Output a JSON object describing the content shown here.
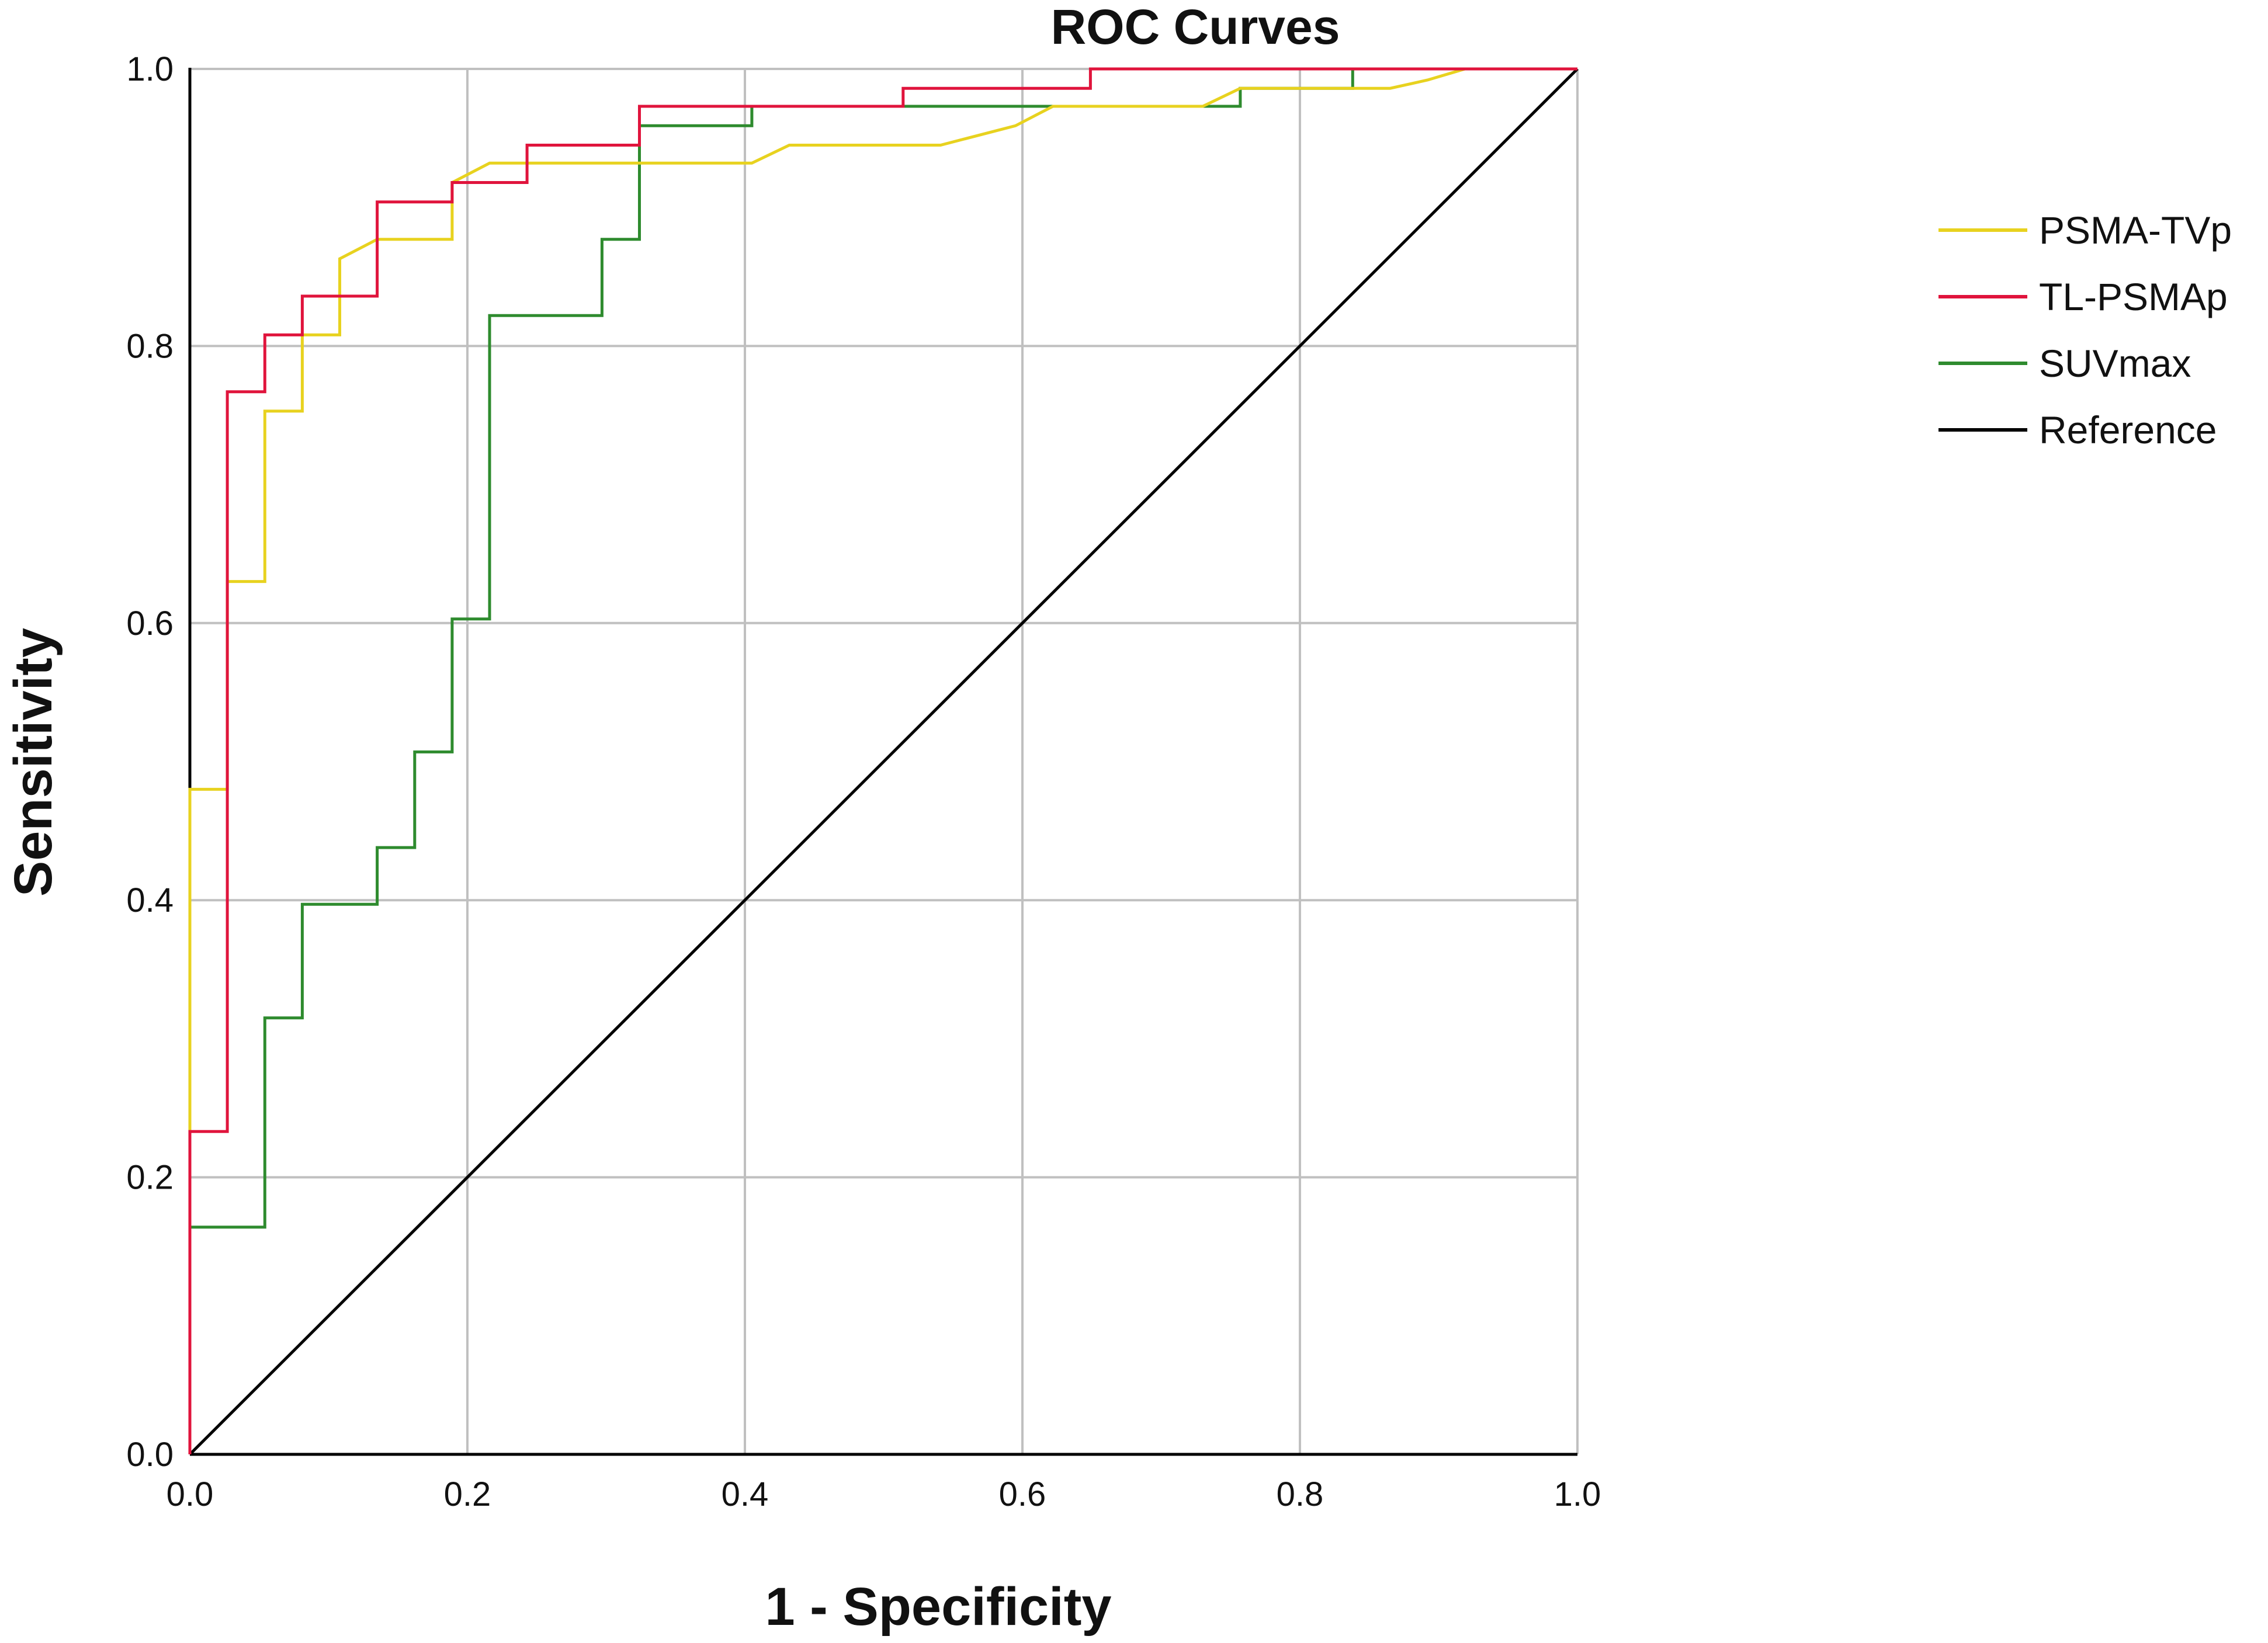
{
  "chart_data": {
    "type": "line",
    "title": "ROC Curves",
    "xlabel": "1 - Specificity",
    "ylabel": "Sensitivity",
    "xlim": [
      0,
      1
    ],
    "ylim": [
      0,
      1
    ],
    "xticks": [
      "0.0",
      "0.2",
      "0.4",
      "0.6",
      "0.8",
      "1.0"
    ],
    "yticks": [
      "0.0",
      "0.2",
      "0.4",
      "0.6",
      "0.8",
      "1.0"
    ],
    "grid": true,
    "legend_position": "right",
    "series": [
      {
        "name": "PSMA-TVp",
        "color": "#e8d21f",
        "x": [
          0.0,
          0.0,
          0.027,
          0.027,
          0.054,
          0.054,
          0.081,
          0.081,
          0.108,
          0.108,
          0.135,
          0.135,
          0.189,
          0.189,
          0.216,
          0.216,
          0.405,
          0.432,
          0.541,
          0.595,
          0.622,
          0.73,
          0.757,
          0.838,
          0.865,
          0.892,
          0.919,
          1.0
        ],
        "y": [
          0.0,
          0.48,
          0.48,
          0.63,
          0.63,
          0.753,
          0.753,
          0.808,
          0.808,
          0.863,
          0.877,
          0.877,
          0.877,
          0.918,
          0.932,
          0.932,
          0.932,
          0.945,
          0.945,
          0.959,
          0.973,
          0.973,
          0.986,
          0.986,
          0.986,
          0.992,
          1.0,
          1.0
        ]
      },
      {
        "name": "TL-PSMAp",
        "color": "#e0143c",
        "x": [
          0.0,
          0.0,
          0.027,
          0.027,
          0.054,
          0.054,
          0.081,
          0.081,
          0.135,
          0.135,
          0.189,
          0.189,
          0.243,
          0.243,
          0.324,
          0.324,
          0.514,
          0.514,
          0.649,
          0.649,
          1.0
        ],
        "y": [
          0.0,
          0.233,
          0.233,
          0.767,
          0.767,
          0.808,
          0.808,
          0.836,
          0.836,
          0.904,
          0.904,
          0.918,
          0.918,
          0.945,
          0.945,
          0.973,
          0.973,
          0.986,
          0.986,
          1.0,
          1.0
        ]
      },
      {
        "name": "SUVmax",
        "color": "#2e8b2e",
        "x": [
          0.0,
          0.0,
          0.054,
          0.054,
          0.081,
          0.081,
          0.135,
          0.135,
          0.162,
          0.162,
          0.189,
          0.189,
          0.216,
          0.216,
          0.297,
          0.297,
          0.324,
          0.324,
          0.405,
          0.405,
          0.757,
          0.757,
          0.838,
          0.838,
          1.0
        ],
        "y": [
          0.0,
          0.164,
          0.164,
          0.315,
          0.315,
          0.397,
          0.397,
          0.438,
          0.438,
          0.507,
          0.507,
          0.603,
          0.603,
          0.822,
          0.822,
          0.877,
          0.877,
          0.959,
          0.959,
          0.973,
          0.973,
          0.986,
          0.986,
          1.0,
          1.0
        ]
      },
      {
        "name": "Reference",
        "color": "#000000",
        "x": [
          0,
          1
        ],
        "y": [
          0,
          1
        ]
      }
    ]
  }
}
